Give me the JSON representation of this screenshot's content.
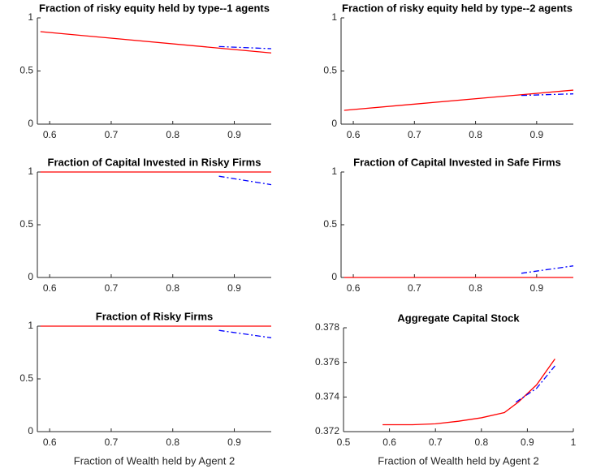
{
  "chart_data": [
    {
      "type": "line",
      "title": "Fraction of risky equity held by type--1 agents",
      "xlim": [
        0.58,
        0.96
      ],
      "xticks": [
        0.6,
        0.7,
        0.8,
        0.9
      ],
      "ylim": [
        0,
        1
      ],
      "yticks": [
        0,
        0.5,
        1
      ],
      "series": [
        {
          "color": "#ff0000",
          "linestyle": "solid",
          "x": [
            0.585,
            0.96
          ],
          "values": [
            0.87,
            0.67
          ]
        },
        {
          "color": "#0000ff",
          "linestyle": "dashdot",
          "x": [
            0.875,
            0.96
          ],
          "values": [
            0.73,
            0.71
          ]
        }
      ]
    },
    {
      "type": "line",
      "title": "Fraction of risky equity held by type--2 agents",
      "xlim": [
        0.58,
        0.96
      ],
      "xticks": [
        0.6,
        0.7,
        0.8,
        0.9
      ],
      "ylim": [
        0,
        1
      ],
      "yticks": [
        0,
        0.5,
        1
      ],
      "series": [
        {
          "color": "#ff0000",
          "linestyle": "solid",
          "x": [
            0.585,
            0.96
          ],
          "values": [
            0.13,
            0.32
          ]
        },
        {
          "color": "#0000ff",
          "linestyle": "dashdot",
          "x": [
            0.875,
            0.96
          ],
          "values": [
            0.27,
            0.285
          ]
        }
      ]
    },
    {
      "type": "line",
      "title": "Fraction of Capital Invested in Risky Firms",
      "xlim": [
        0.58,
        0.96
      ],
      "xticks": [
        0.6,
        0.7,
        0.8,
        0.9
      ],
      "ylim": [
        0,
        1
      ],
      "yticks": [
        0,
        0.5,
        1
      ],
      "series": [
        {
          "color": "#ff0000",
          "linestyle": "solid",
          "x": [
            0.585,
            0.96
          ],
          "values": [
            1,
            1
          ]
        },
        {
          "color": "#0000ff",
          "linestyle": "dashdot",
          "x": [
            0.875,
            0.96
          ],
          "values": [
            0.96,
            0.88
          ]
        }
      ]
    },
    {
      "type": "line",
      "title": "Fraction of Capital Invested in Safe Firms",
      "xlim": [
        0.58,
        0.96
      ],
      "xticks": [
        0.6,
        0.7,
        0.8,
        0.9
      ],
      "ylim": [
        0,
        1
      ],
      "yticks": [
        0,
        0.5,
        1
      ],
      "series": [
        {
          "color": "#ff0000",
          "linestyle": "solid",
          "x": [
            0.585,
            0.96
          ],
          "values": [
            0,
            0
          ]
        },
        {
          "color": "#0000ff",
          "linestyle": "dashdot",
          "x": [
            0.875,
            0.96
          ],
          "values": [
            0.04,
            0.11
          ]
        }
      ]
    },
    {
      "type": "line",
      "title": "Fraction of Risky Firms",
      "xlabel": "Fraction of Wealth held by Agent 2",
      "xlim": [
        0.58,
        0.96
      ],
      "xticks": [
        0.6,
        0.7,
        0.8,
        0.9
      ],
      "ylim": [
        0,
        1
      ],
      "yticks": [
        0,
        0.5,
        1
      ],
      "series": [
        {
          "color": "#ff0000",
          "linestyle": "solid",
          "x": [
            0.585,
            0.96
          ],
          "values": [
            1,
            1
          ]
        },
        {
          "color": "#0000ff",
          "linestyle": "dashdot",
          "x": [
            0.875,
            0.96
          ],
          "values": [
            0.96,
            0.89
          ]
        }
      ]
    },
    {
      "type": "line",
      "title": "Aggregate Capital Stock",
      "xlabel": "Fraction of Wealth held by Agent 2",
      "xlim": [
        0.5,
        1
      ],
      "xticks": [
        0.5,
        0.6,
        0.7,
        0.8,
        0.9,
        1
      ],
      "ylim": [
        0.372,
        0.378
      ],
      "yticks": [
        0.372,
        0.374,
        0.376,
        0.378
      ],
      "series": [
        {
          "color": "#ff0000",
          "linestyle": "solid",
          "x": [
            0.585,
            0.65,
            0.7,
            0.75,
            0.8,
            0.85,
            0.88,
            0.92,
            0.96
          ],
          "values": [
            0.3724,
            0.3724,
            0.37245,
            0.3726,
            0.3728,
            0.3731,
            0.3737,
            0.3747,
            0.3762
          ]
        },
        {
          "color": "#0000ff",
          "linestyle": "dashdot",
          "x": [
            0.875,
            0.92,
            0.96
          ],
          "values": [
            0.3737,
            0.3745,
            0.3758
          ]
        }
      ]
    }
  ]
}
